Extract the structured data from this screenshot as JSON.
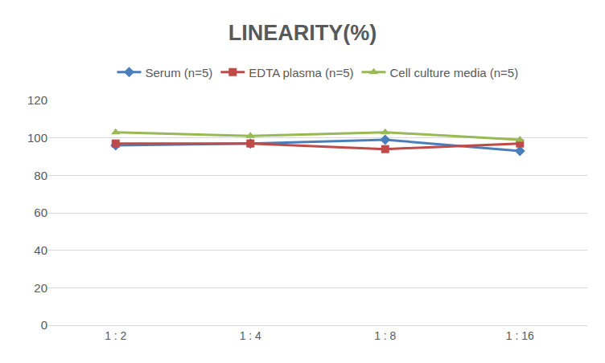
{
  "chart_data": {
    "type": "line",
    "title": "LINEARITY(%)",
    "categories": [
      "1 : 2",
      "1 : 4",
      "1 : 8",
      "1 : 16"
    ],
    "series": [
      {
        "name": "Serum (n=5)",
        "color": "#4a7ebb",
        "marker": "diamond",
        "values": [
          96,
          97,
          99,
          93
        ]
      },
      {
        "name": "EDTA plasma (n=5)",
        "color": "#be4b48",
        "marker": "square",
        "values": [
          97,
          97,
          94,
          97
        ]
      },
      {
        "name": "Cell culture media (n=5)",
        "color": "#98b954",
        "marker": "triangle-up",
        "values": [
          103,
          101,
          103,
          99
        ]
      }
    ],
    "ylim": [
      0,
      120
    ],
    "yticks": [
      0,
      20,
      40,
      60,
      80,
      100,
      120
    ],
    "grid": true,
    "legend": "top"
  }
}
